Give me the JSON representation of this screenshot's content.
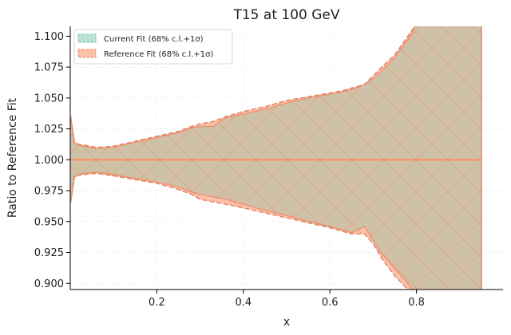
{
  "chart_data": {
    "type": "area",
    "title": "T15 at 100 GeV",
    "xlabel": "x",
    "ylabel": "Ratio to Reference Fit",
    "xlim": [
      0.0,
      1.0
    ],
    "ylim": [
      0.895,
      1.108
    ],
    "xticks": [
      0.2,
      0.4,
      0.6,
      0.8
    ],
    "xtick_labels": [
      "0.2",
      "0.4",
      "0.6",
      "0.8"
    ],
    "yticks": [
      0.9,
      0.925,
      0.95,
      0.975,
      1.0,
      1.025,
      1.05,
      1.075,
      1.1
    ],
    "ytick_labels": [
      "0.900",
      "0.925",
      "0.950",
      "0.975",
      "1.000",
      "1.025",
      "1.050",
      "1.075",
      "1.100"
    ],
    "grid": true,
    "legend_position": "top-left",
    "colors": {
      "current": "#66c2a5",
      "reference": "#fc8d62",
      "overlap": "#d5b494"
    },
    "series": [
      {
        "name": "Current Fit (68% c.l.+1σ)",
        "style": "band",
        "x": [
          0.001,
          0.01,
          0.03,
          0.06,
          0.1,
          0.15,
          0.2,
          0.25,
          0.28,
          0.3,
          0.33,
          0.36,
          0.4,
          0.45,
          0.5,
          0.55,
          0.6,
          0.63,
          0.65,
          0.68,
          0.7,
          0.72,
          0.75,
          0.78,
          0.8,
          0.83,
          0.86,
          0.9,
          0.95
        ],
        "upper": [
          1.036,
          1.014,
          1.011,
          1.009,
          1.01,
          1.014,
          1.018,
          1.022,
          1.026,
          1.027,
          1.027,
          1.034,
          1.037,
          1.041,
          1.046,
          1.05,
          1.053,
          1.055,
          1.057,
          1.061,
          1.066,
          1.072,
          1.083,
          1.097,
          1.11,
          1.11,
          1.11,
          1.11,
          1.11
        ],
        "lower": [
          0.965,
          0.986,
          0.989,
          0.99,
          0.988,
          0.985,
          0.982,
          0.978,
          0.974,
          0.972,
          0.97,
          0.968,
          0.964,
          0.959,
          0.955,
          0.95,
          0.946,
          0.943,
          0.941,
          0.946,
          0.935,
          0.924,
          0.912,
          0.9,
          0.89,
          0.89,
          0.89,
          0.89,
          0.89
        ],
        "central": [
          1.0,
          1.0,
          1.0,
          1.0,
          1.0,
          1.0,
          1.0,
          1.0,
          1.0,
          1.0,
          1.0,
          1.0,
          1.0,
          1.0,
          1.0,
          1.0,
          1.0,
          1.0,
          1.0,
          1.0,
          1.0,
          1.0,
          1.0,
          1.0,
          1.0,
          1.0,
          1.0,
          1.0,
          1.0
        ]
      },
      {
        "name": "Reference Fit (68% c.l.+1σ)",
        "style": "band",
        "x": [
          0.001,
          0.01,
          0.03,
          0.06,
          0.1,
          0.15,
          0.2,
          0.25,
          0.28,
          0.3,
          0.33,
          0.36,
          0.4,
          0.45,
          0.5,
          0.55,
          0.6,
          0.63,
          0.65,
          0.68,
          0.7,
          0.72,
          0.75,
          0.78,
          0.8,
          0.83,
          0.86,
          0.9,
          0.95
        ],
        "upper": [
          1.034,
          1.013,
          1.012,
          1.01,
          1.011,
          1.015,
          1.019,
          1.023,
          1.027,
          1.029,
          1.031,
          1.035,
          1.039,
          1.043,
          1.048,
          1.051,
          1.054,
          1.056,
          1.058,
          1.061,
          1.068,
          1.075,
          1.085,
          1.1,
          1.11,
          1.11,
          1.11,
          1.11,
          1.11
        ],
        "lower": [
          0.966,
          0.987,
          0.988,
          0.989,
          0.987,
          0.984,
          0.981,
          0.976,
          0.972,
          0.968,
          0.966,
          0.964,
          0.961,
          0.957,
          0.953,
          0.949,
          0.945,
          0.942,
          0.94,
          0.94,
          0.932,
          0.92,
          0.906,
          0.895,
          0.89,
          0.89,
          0.89,
          0.89,
          0.89
        ],
        "central": [
          1.0,
          1.0,
          1.0,
          1.0,
          1.0,
          1.0,
          1.0,
          1.0,
          1.0,
          1.0,
          1.0,
          1.0,
          1.0,
          1.0,
          1.0,
          1.0,
          1.0,
          1.0,
          1.0,
          1.0,
          1.0,
          1.0,
          1.0,
          1.0,
          1.0,
          1.0,
          1.0,
          1.0,
          1.0
        ]
      }
    ]
  }
}
